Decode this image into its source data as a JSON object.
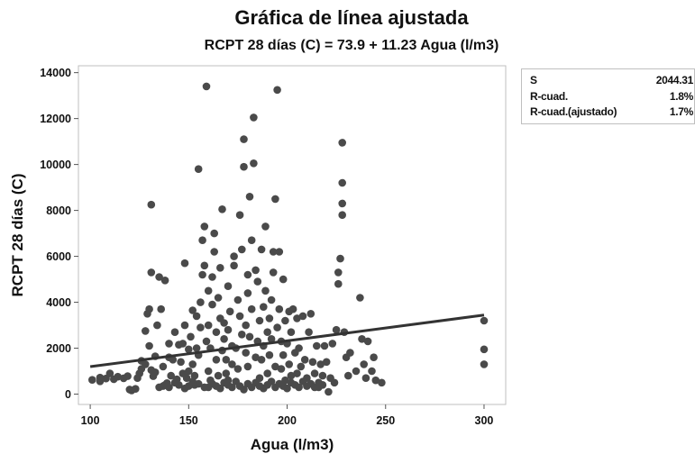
{
  "chart_data": {
    "type": "scatter",
    "title": "Gráfica de línea ajustada",
    "subtitle": "RCPT 28 días (C) = 73.9 + 11.23 Agua (l/m3)",
    "xlabel": "Agua (l/m3)",
    "ylabel": "RCPT 28 días (C)",
    "xlim": [
      94,
      311
    ],
    "ylim": [
      -450,
      14300
    ],
    "xticks": [
      "100",
      "150",
      "200",
      "250",
      "300"
    ],
    "xtick_values": [
      100,
      150,
      200,
      250,
      300
    ],
    "yticks": [
      "0",
      "2000",
      "4000",
      "6000",
      "8000",
      "10000",
      "12000",
      "14000"
    ],
    "ytick_values": [
      0,
      2000,
      4000,
      6000,
      8000,
      10000,
      12000,
      14000
    ],
    "grid": false,
    "fit_line": {
      "intercept": 73.9,
      "slope": 11.23,
      "x_range": [
        100,
        300
      ]
    },
    "point_color": "#4a4a4a",
    "line_color": "#333333",
    "points": [
      [
        101,
        620
      ],
      [
        105,
        560
      ],
      [
        105,
        720
      ],
      [
        108,
        680
      ],
      [
        110,
        900
      ],
      [
        112,
        650
      ],
      [
        114,
        760
      ],
      [
        117,
        690
      ],
      [
        119,
        780
      ],
      [
        120,
        200
      ],
      [
        121,
        160
      ],
      [
        123,
        230
      ],
      [
        124,
        700
      ],
      [
        125,
        900
      ],
      [
        126,
        1100
      ],
      [
        126,
        1450
      ],
      [
        128,
        1300
      ],
      [
        128,
        2750
      ],
      [
        129,
        3500
      ],
      [
        130,
        3700
      ],
      [
        130,
        2100
      ],
      [
        131,
        1050
      ],
      [
        131,
        5300
      ],
      [
        131,
        8250
      ],
      [
        132,
        780
      ],
      [
        133,
        950
      ],
      [
        133,
        1650
      ],
      [
        134,
        3000
      ],
      [
        135,
        5100
      ],
      [
        136,
        3700
      ],
      [
        137,
        1200
      ],
      [
        137,
        350
      ],
      [
        138,
        4950
      ],
      [
        139,
        480
      ],
      [
        140,
        2200
      ],
      [
        140,
        1600
      ],
      [
        141,
        800
      ],
      [
        142,
        1500
      ],
      [
        143,
        2700
      ],
      [
        144,
        650
      ],
      [
        145,
        2150
      ],
      [
        146,
        1400
      ],
      [
        147,
        900
      ],
      [
        147,
        2200
      ],
      [
        148,
        3000
      ],
      [
        148,
        5700
      ],
      [
        149,
        700
      ],
      [
        150,
        1000
      ],
      [
        150,
        1950
      ],
      [
        151,
        2500
      ],
      [
        152,
        1300
      ],
      [
        152,
        3650
      ],
      [
        153,
        800
      ],
      [
        153,
        400
      ],
      [
        154,
        2000
      ],
      [
        154,
        3400
      ],
      [
        155,
        9800
      ],
      [
        155,
        1700
      ],
      [
        156,
        2900
      ],
      [
        156,
        4000
      ],
      [
        157,
        5200
      ],
      [
        157,
        6700
      ],
      [
        158,
        7300
      ],
      [
        158,
        5600
      ],
      [
        159,
        13400
      ],
      [
        159,
        2300
      ],
      [
        160,
        3000
      ],
      [
        160,
        4500
      ],
      [
        160,
        1000
      ],
      [
        161,
        600
      ],
      [
        161,
        2000
      ],
      [
        162,
        5100
      ],
      [
        162,
        3900
      ],
      [
        163,
        6200
      ],
      [
        163,
        7000
      ],
      [
        164,
        1500
      ],
      [
        164,
        2700
      ],
      [
        165,
        800
      ],
      [
        165,
        4200
      ],
      [
        166,
        5500
      ],
      [
        166,
        3300
      ],
      [
        167,
        8050
      ],
      [
        167,
        1900
      ],
      [
        168,
        3100
      ],
      [
        168,
        2400
      ],
      [
        169,
        900
      ],
      [
        169,
        1500
      ],
      [
        170,
        2800
      ],
      [
        170,
        4700
      ],
      [
        170,
        600
      ],
      [
        171,
        3600
      ],
      [
        172,
        1300
      ],
      [
        172,
        2100
      ],
      [
        173,
        5600
      ],
      [
        173,
        6000
      ],
      [
        174,
        2000
      ],
      [
        175,
        1100
      ],
      [
        175,
        4100
      ],
      [
        176,
        3400
      ],
      [
        176,
        7800
      ],
      [
        177,
        2600
      ],
      [
        177,
        6300
      ],
      [
        178,
        11100
      ],
      [
        178,
        9900
      ],
      [
        179,
        3000
      ],
      [
        179,
        1800
      ],
      [
        180,
        4400
      ],
      [
        180,
        5200
      ],
      [
        180,
        1200
      ],
      [
        181,
        8600
      ],
      [
        181,
        2500
      ],
      [
        182,
        3700
      ],
      [
        182,
        6700
      ],
      [
        183,
        10050
      ],
      [
        183,
        12050
      ],
      [
        184,
        1600
      ],
      [
        184,
        5400
      ],
      [
        185,
        2300
      ],
      [
        185,
        4900
      ],
      [
        186,
        3200
      ],
      [
        186,
        700
      ],
      [
        187,
        1500
      ],
      [
        187,
        6300
      ],
      [
        188,
        2100
      ],
      [
        188,
        3800
      ],
      [
        189,
        4500
      ],
      [
        189,
        7300
      ],
      [
        190,
        900
      ],
      [
        190,
        2700
      ],
      [
        191,
        3300
      ],
      [
        191,
        1700
      ],
      [
        192,
        2400
      ],
      [
        192,
        4100
      ],
      [
        193,
        6200
      ],
      [
        193,
        5300
      ],
      [
        194,
        8500
      ],
      [
        194,
        1200
      ],
      [
        195,
        13250
      ],
      [
        195,
        2900
      ],
      [
        196,
        3700
      ],
      [
        196,
        6200
      ],
      [
        197,
        1100
      ],
      [
        197,
        2300
      ],
      [
        198,
        5000
      ],
      [
        198,
        1700
      ],
      [
        199,
        3200
      ],
      [
        199,
        600
      ],
      [
        200,
        2200
      ],
      [
        201,
        1300
      ],
      [
        201,
        3600
      ],
      [
        202,
        800
      ],
      [
        202,
        2700
      ],
      [
        203,
        3700
      ],
      [
        204,
        1800
      ],
      [
        205,
        900
      ],
      [
        205,
        3300
      ],
      [
        206,
        2000
      ],
      [
        207,
        1200
      ],
      [
        208,
        3400
      ],
      [
        209,
        1500
      ],
      [
        210,
        700
      ],
      [
        211,
        2700
      ],
      [
        212,
        3500
      ],
      [
        213,
        1400
      ],
      [
        214,
        900
      ],
      [
        215,
        2100
      ],
      [
        216,
        300
      ],
      [
        217,
        1300
      ],
      [
        218,
        800
      ],
      [
        219,
        2100
      ],
      [
        220,
        1400
      ],
      [
        221,
        100
      ],
      [
        222,
        700
      ],
      [
        223,
        2200
      ],
      [
        224,
        500
      ],
      [
        225,
        2800
      ],
      [
        226,
        5300
      ],
      [
        226,
        4800
      ],
      [
        227,
        5900
      ],
      [
        228,
        7800
      ],
      [
        228,
        8300
      ],
      [
        228,
        9200
      ],
      [
        228,
        10950
      ],
      [
        229,
        2700
      ],
      [
        230,
        1600
      ],
      [
        231,
        800
      ],
      [
        232,
        1800
      ],
      [
        235,
        1000
      ],
      [
        237,
        4200
      ],
      [
        238,
        2400
      ],
      [
        239,
        1300
      ],
      [
        240,
        700
      ],
      [
        241,
        2300
      ],
      [
        243,
        1000
      ],
      [
        244,
        1600
      ],
      [
        245,
        600
      ],
      [
        248,
        500
      ],
      [
        300,
        3200
      ],
      [
        300,
        1950
      ],
      [
        300,
        1300
      ],
      [
        160,
        300
      ],
      [
        162,
        450
      ],
      [
        164,
        350
      ],
      [
        166,
        250
      ],
      [
        168,
        500
      ],
      [
        170,
        400
      ],
      [
        172,
        300
      ],
      [
        174,
        550
      ],
      [
        176,
        350
      ],
      [
        178,
        200
      ],
      [
        180,
        450
      ],
      [
        182,
        300
      ],
      [
        184,
        500
      ],
      [
        186,
        350
      ],
      [
        188,
        250
      ],
      [
        190,
        400
      ],
      [
        192,
        550
      ],
      [
        194,
        300
      ],
      [
        196,
        450
      ],
      [
        198,
        350
      ],
      [
        200,
        250
      ],
      [
        202,
        500
      ],
      [
        204,
        400
      ],
      [
        206,
        300
      ],
      [
        208,
        550
      ],
      [
        210,
        350
      ],
      [
        212,
        450
      ],
      [
        214,
        300
      ],
      [
        216,
        500
      ],
      [
        218,
        400
      ],
      [
        140,
        300
      ],
      [
        145,
        400
      ],
      [
        150,
        350
      ],
      [
        155,
        450
      ],
      [
        158,
        300
      ],
      [
        152,
        550
      ],
      [
        148,
        250
      ],
      [
        143,
        500
      ],
      [
        138,
        400
      ],
      [
        135,
        300
      ]
    ]
  },
  "stats": [
    {
      "label": "S",
      "value": "2044.31"
    },
    {
      "label": "R-cuad.",
      "value": "1.8%"
    },
    {
      "label": "R-cuad.(ajustado)",
      "value": "1.7%"
    }
  ]
}
